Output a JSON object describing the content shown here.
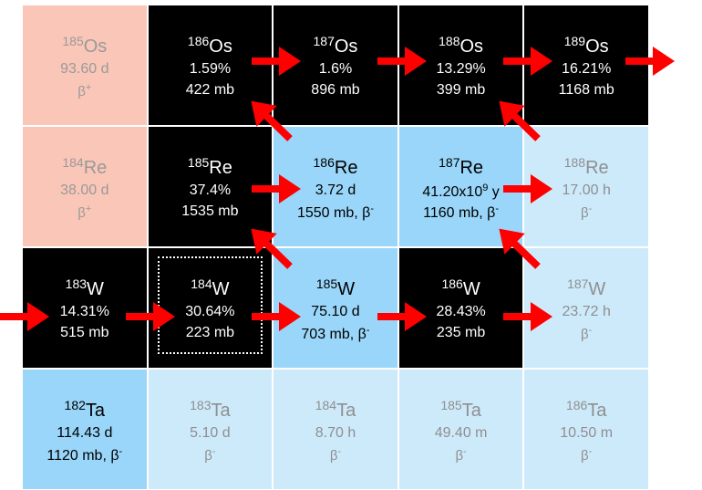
{
  "cells": [
    {
      "id": "os185",
      "row": 0,
      "col": 0,
      "mass": "185",
      "el": "Os",
      "l2": "93.60 d",
      "l3": "β",
      "l3sup": "+",
      "style": "salmon"
    },
    {
      "id": "os186",
      "row": 0,
      "col": 1,
      "mass": "186",
      "el": "Os",
      "l2": "1.59%",
      "l3": "422 mb",
      "style": "black"
    },
    {
      "id": "os187",
      "row": 0,
      "col": 2,
      "mass": "187",
      "el": "Os",
      "l2": "1.6%",
      "l3": "896 mb",
      "style": "black"
    },
    {
      "id": "os188",
      "row": 0,
      "col": 3,
      "mass": "188",
      "el": "Os",
      "l2": "13.29%",
      "l3": "399 mb",
      "style": "black"
    },
    {
      "id": "os189",
      "row": 0,
      "col": 4,
      "mass": "189",
      "el": "Os",
      "l2": "16.21%",
      "l3": "1168 mb",
      "style": "black"
    },
    {
      "id": "re184",
      "row": 1,
      "col": 0,
      "mass": "184",
      "el": "Re",
      "l2": "38.00 d",
      "l3": "β",
      "l3sup": "+",
      "style": "salmon"
    },
    {
      "id": "re185",
      "row": 1,
      "col": 1,
      "mass": "185",
      "el": "Re",
      "l2": "37.4%",
      "l3": "1535 mb",
      "style": "black"
    },
    {
      "id": "re186",
      "row": 1,
      "col": 2,
      "mass": "186",
      "el": "Re",
      "l2": "3.72 d",
      "l3": "1550 mb, β",
      "l3sup": "-",
      "style": "blue"
    },
    {
      "id": "re187",
      "row": 1,
      "col": 3,
      "mass": "187",
      "el": "Re",
      "l2": "41.20x10",
      "l2sup": "9",
      "l2tail": " y",
      "l3": "1160 mb, β",
      "l3sup": "-",
      "style": "blue"
    },
    {
      "id": "re188",
      "row": 1,
      "col": 4,
      "mass": "188",
      "el": "Re",
      "l2": "17.00 h",
      "l3": "β",
      "l3sup": "-",
      "style": "lightblue"
    },
    {
      "id": "w183",
      "row": 2,
      "col": 0,
      "mass": "183",
      "el": "W",
      "l2": "14.31%",
      "l3": "515 mb",
      "style": "black"
    },
    {
      "id": "w184",
      "row": 2,
      "col": 1,
      "mass": "184",
      "el": "W",
      "l2": "30.64%",
      "l3": "223 mb",
      "style": "black"
    },
    {
      "id": "w185",
      "row": 2,
      "col": 2,
      "mass": "185",
      "el": "W",
      "l2": "75.10 d",
      "l3": "703 mb, β",
      "l3sup": "-",
      "style": "blue"
    },
    {
      "id": "w186",
      "row": 2,
      "col": 3,
      "mass": "186",
      "el": "W",
      "l2": "28.43%",
      "l3": "235 mb",
      "style": "black"
    },
    {
      "id": "w187",
      "row": 2,
      "col": 4,
      "mass": "187",
      "el": "W",
      "l2": "23.72 h",
      "l3": "β",
      "l3sup": "-",
      "style": "lightblue"
    },
    {
      "id": "ta182",
      "row": 3,
      "col": 0,
      "mass": "182",
      "el": "Ta",
      "l2": "114.43 d",
      "l3": "1120 mb, β",
      "l3sup": "-",
      "style": "blue"
    },
    {
      "id": "ta183",
      "row": 3,
      "col": 1,
      "mass": "183",
      "el": "Ta",
      "l2": "5.10 d",
      "l3": "β",
      "l3sup": "-",
      "style": "lightblue"
    },
    {
      "id": "ta184",
      "row": 3,
      "col": 2,
      "mass": "184",
      "el": "Ta",
      "l2": "8.70 h",
      "l3": "β",
      "l3sup": "-",
      "style": "lightblue"
    },
    {
      "id": "ta185",
      "row": 3,
      "col": 3,
      "mass": "185",
      "el": "Ta",
      "l2": "49.40 m",
      "l3": "β",
      "l3sup": "-",
      "style": "lightblue"
    },
    {
      "id": "ta186",
      "row": 3,
      "col": 4,
      "mass": "186",
      "el": "Ta",
      "l2": "10.50 m",
      "l3": "β",
      "l3sup": "-",
      "style": "lightblue"
    }
  ],
  "colors": {
    "black": "#000000",
    "salmon": "#f9c6b7",
    "blue": "#99d6f9",
    "lightblue": "#cdeafb",
    "arrow": "#ff0000"
  }
}
